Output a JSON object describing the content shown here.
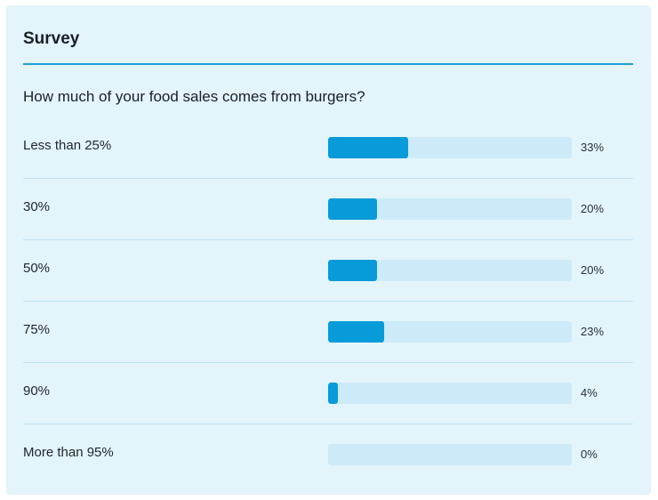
{
  "survey": {
    "title": "Survey",
    "question": "How much of your food sales comes from burgers?",
    "options": [
      {
        "label": "Less than 25%",
        "percent_label": "33%",
        "value": 33
      },
      {
        "label": "30%",
        "percent_label": "20%",
        "value": 20
      },
      {
        "label": "50%",
        "percent_label": "20%",
        "value": 20
      },
      {
        "label": "75%",
        "percent_label": "23%",
        "value": 23
      },
      {
        "label": "90%",
        "percent_label": "4%",
        "value": 4
      },
      {
        "label": "More than 95%",
        "percent_label": "0%",
        "value": 0
      }
    ]
  },
  "colors": {
    "card_background": "#e3f4fb",
    "accent": "#1e9fd8",
    "bar_fill": "#079bd9",
    "bar_track": "#cdeaf8"
  }
}
